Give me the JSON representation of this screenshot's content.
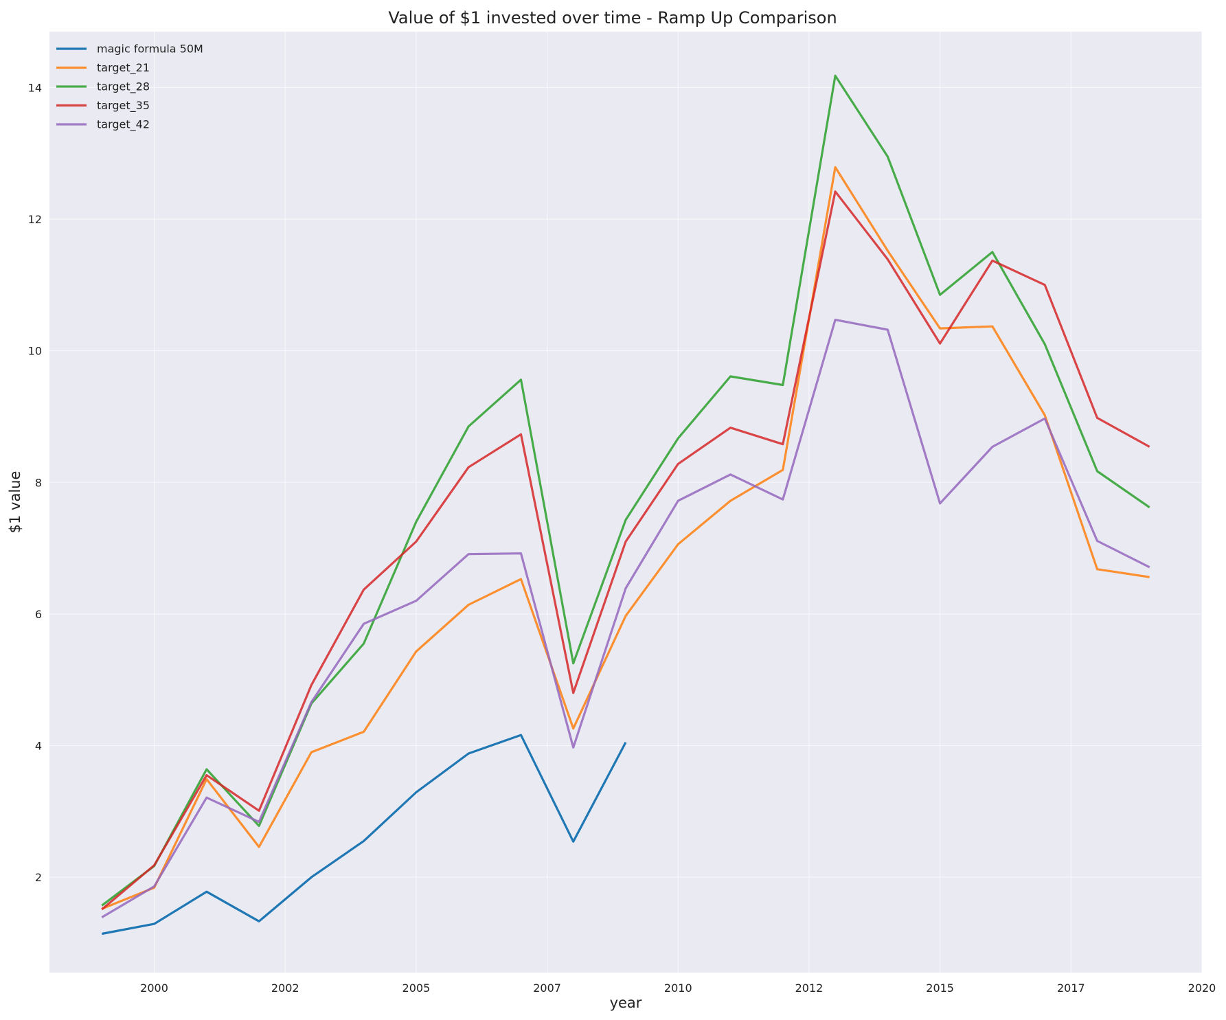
{
  "chart_data": {
    "type": "line",
    "title": "Value of $1 invested over time - Ramp Up Comparison",
    "xlabel": "year",
    "ylabel": "$1 value",
    "xlim": [
      1998.0,
      2020.0
    ],
    "ylim": [
      0.55,
      14.85
    ],
    "x_ticks": [
      {
        "value": 2000.0,
        "label": "2000"
      },
      {
        "value": 2002.5,
        "label": "2002"
      },
      {
        "value": 2005.0,
        "label": "2005"
      },
      {
        "value": 2007.5,
        "label": "2007"
      },
      {
        "value": 2010.0,
        "label": "2010"
      },
      {
        "value": 2012.5,
        "label": "2012"
      },
      {
        "value": 2015.0,
        "label": "2015"
      },
      {
        "value": 2017.5,
        "label": "2017"
      },
      {
        "value": 2020.0,
        "label": "2020"
      }
    ],
    "y_ticks": [
      2,
      4,
      6,
      8,
      10,
      12,
      14
    ],
    "grid": true,
    "legend_position": "top-left",
    "x": [
      1999.0,
      2000.0,
      2001.0,
      2002.0,
      2003.0,
      2004.0,
      2005.0,
      2006.0,
      2007.0,
      2008.0,
      2009.0,
      2010.0,
      2011.0,
      2012.0,
      2013.0,
      2014.0,
      2015.0,
      2016.0,
      2017.0,
      2018.0,
      2019.0
    ],
    "series": [
      {
        "name": "magic formula 50M",
        "color": "#1f77b4",
        "values": [
          1.14,
          1.29,
          1.78,
          1.33,
          2.0,
          2.55,
          3.29,
          3.88,
          4.16,
          2.54,
          4.05,
          null,
          null,
          null,
          null,
          null,
          null,
          null,
          null,
          null,
          null
        ]
      },
      {
        "name": "target_21",
        "color": "#ff7f0e",
        "values": [
          1.52,
          1.84,
          3.49,
          2.46,
          3.9,
          4.21,
          5.43,
          6.14,
          6.53,
          4.26,
          5.97,
          7.06,
          7.72,
          8.19,
          12.79,
          11.52,
          10.34,
          10.37,
          9.02,
          6.68,
          6.56
        ]
      },
      {
        "name": "target_28",
        "color": "#2ca02c",
        "values": [
          1.57,
          2.17,
          3.64,
          2.78,
          4.64,
          5.55,
          7.4,
          8.85,
          9.56,
          5.25,
          7.43,
          8.67,
          9.61,
          9.48,
          14.18,
          12.95,
          10.85,
          11.5,
          10.1,
          8.17,
          7.62
        ]
      },
      {
        "name": "target_35",
        "color": "#d62728",
        "values": [
          1.51,
          2.18,
          3.55,
          3.01,
          4.92,
          6.37,
          7.1,
          8.23,
          8.73,
          4.8,
          7.1,
          8.28,
          8.83,
          8.58,
          12.42,
          11.39,
          10.11,
          11.37,
          11.0,
          8.98,
          8.54
        ]
      },
      {
        "name": "target_42",
        "color": "#9467bd",
        "values": [
          1.39,
          1.86,
          3.21,
          2.84,
          4.66,
          5.85,
          6.2,
          6.91,
          6.92,
          3.97,
          6.39,
          7.72,
          8.12,
          7.74,
          10.47,
          10.32,
          7.68,
          8.54,
          8.97,
          7.11,
          6.71
        ]
      }
    ]
  }
}
